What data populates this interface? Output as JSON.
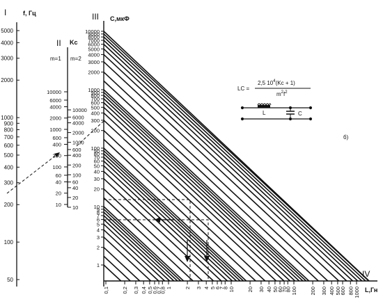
{
  "axes": {
    "f": {
      "roman": "I",
      "title": "f, Гц",
      "ticks": [
        "5000",
        "4000",
        "3000",
        "2000",
        "1000",
        "900",
        "800",
        "700",
        "600",
        "500",
        "400",
        "300",
        "200",
        "100",
        "50"
      ]
    },
    "kc": {
      "roman": "II",
      "title": "Kc",
      "m1_label": "m=1",
      "m2_label": "m=2",
      "ticks_m1": [
        "10000",
        "6000",
        "4000",
        "2000",
        "1000",
        "600",
        "400",
        "200",
        "100",
        "60",
        "40",
        "20",
        "10"
      ],
      "ticks_m2": [
        "10000",
        "6000",
        "4000",
        "2000",
        "1000",
        "600",
        "400",
        "200",
        "100",
        "60",
        "40",
        "20",
        "10"
      ]
    },
    "c": {
      "roman": "III",
      "title": "C,мкФ",
      "ticks": [
        "10000",
        "9000",
        "8000",
        "7000",
        "6000",
        "5000",
        "4000",
        "3000",
        "2000",
        "1000",
        "900",
        "800",
        "700",
        "600",
        "500",
        "400",
        "300",
        "200",
        "100",
        "90",
        "80",
        "70",
        "60",
        "50",
        "40",
        "30",
        "20",
        "10",
        "9",
        "8",
        "7",
        "6",
        "5",
        "4",
        "3",
        "2",
        "1"
      ]
    },
    "l": {
      "roman": "IV",
      "title": "L,Гн",
      "ticks": [
        "0,1",
        "0,2",
        "0,3",
        "0,4",
        "0,5",
        "0,6",
        "0,7",
        "0,8",
        "1",
        "2",
        "3",
        "4",
        "5",
        "6",
        "7",
        "8",
        "10",
        "20",
        "30",
        "40",
        "50",
        "60",
        "70",
        "80",
        "100",
        "200",
        "300",
        "400",
        "500",
        "600",
        "800",
        "1000"
      ]
    }
  },
  "formula": {
    "lhs": "LC =",
    "numerator": "2,5 10",
    "numerator_exp": "4",
    "numerator_tail": "(Kc + 1)",
    "denominator": "m",
    "denominator_exp": "2",
    "denominator_tail": "f",
    "denominator_tail_exp": "2"
  },
  "circuit": {
    "inductor_label": "L",
    "capacitor_label": "C"
  },
  "panel_label": "б)"
}
